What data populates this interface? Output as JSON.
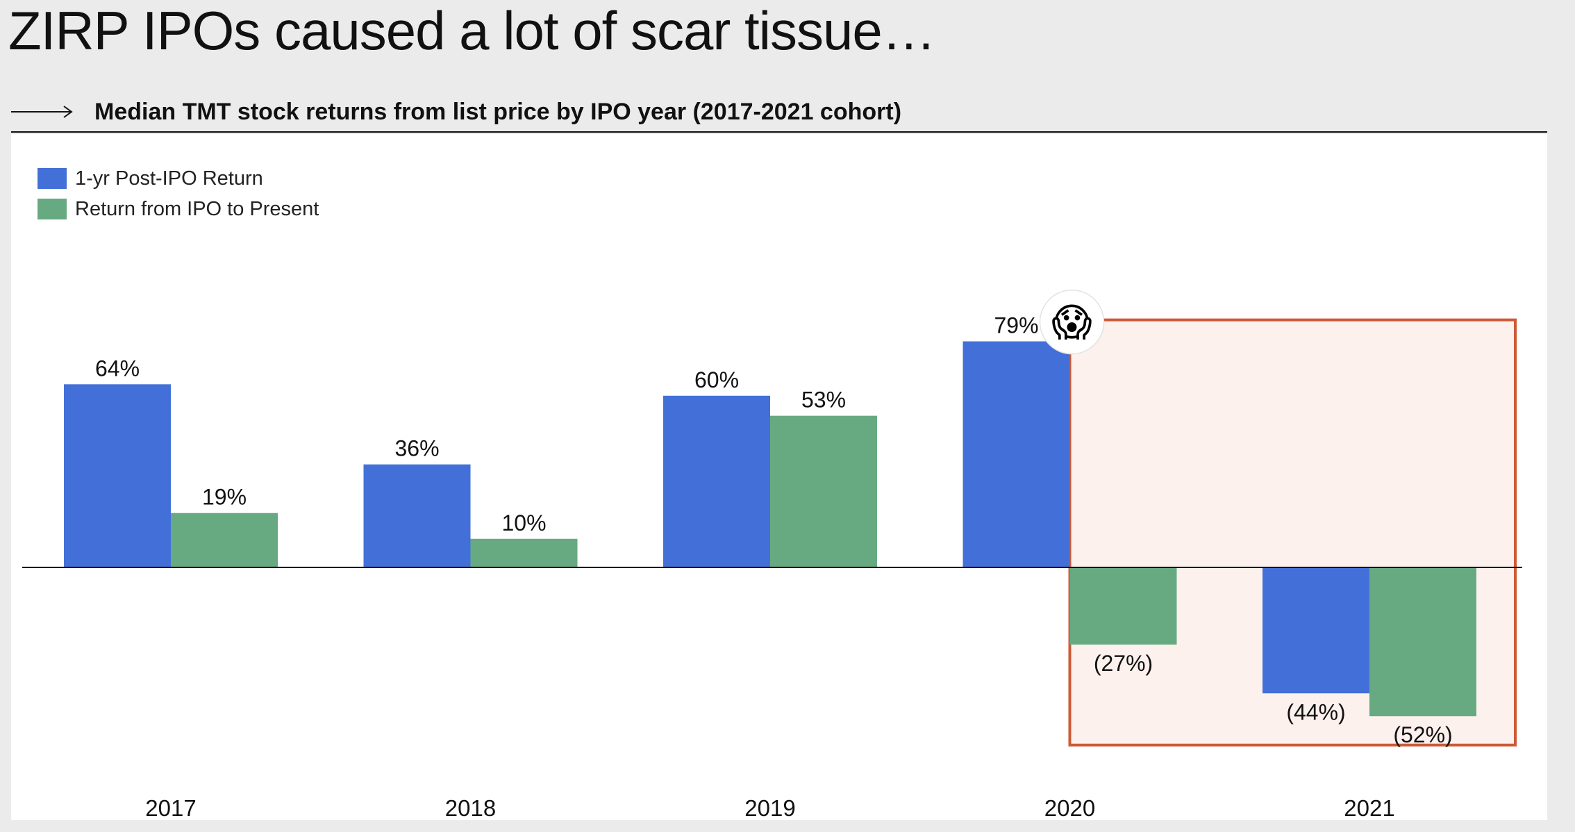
{
  "title": "ZIRP IPOs caused a lot of scar tissue…",
  "subtitle": "Median TMT stock returns from list price by IPO year (2017-2021 cohort)",
  "icons": {
    "arrow": "long-right-arrow-icon",
    "emoji": "😱"
  },
  "colors": {
    "series_1": "#4370d8",
    "series_2": "#67aa82",
    "highlight_border": "#cc5a36",
    "highlight_fill": "#fdf1ee",
    "axis": "#111111"
  },
  "chart_data": {
    "type": "bar",
    "categories": [
      "2017",
      "2018",
      "2019",
      "2020",
      "2021"
    ],
    "series": [
      {
        "name": "1-yr Post-IPO Return",
        "values": [
          64,
          36,
          60,
          79,
          -44
        ],
        "labels": [
          "64%",
          "36%",
          "60%",
          "79%",
          "(44%)"
        ]
      },
      {
        "name": "Return from IPO to Present",
        "values": [
          19,
          10,
          53,
          -27,
          -52
        ],
        "labels": [
          "19%",
          "10%",
          "53%",
          "(27%)",
          "(52%)"
        ]
      }
    ],
    "unit": "%",
    "ylim": [
      -60,
      100
    ],
    "grid": false,
    "legend": "top-left",
    "highlight": {
      "from": "2020 Return from IPO to Present",
      "to": "2021"
    }
  }
}
